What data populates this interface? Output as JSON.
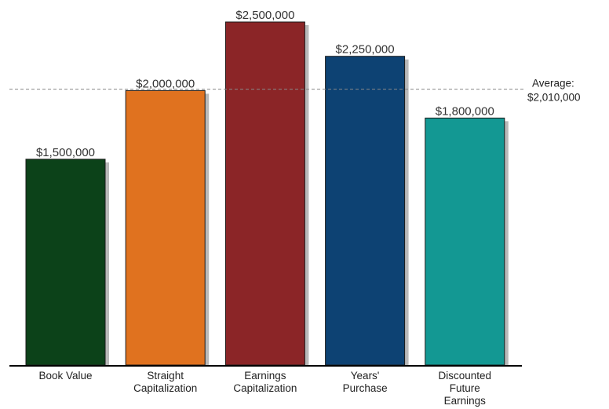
{
  "chart_data": {
    "type": "bar",
    "categories": [
      [
        "Book Value"
      ],
      [
        "Straight",
        "Capitalization"
      ],
      [
        "Earnings",
        "Capitalization"
      ],
      [
        "Years'",
        "Purchase"
      ],
      [
        "Discounted",
        "Future",
        "Earnings"
      ]
    ],
    "values": [
      1500000,
      2000000,
      2500000,
      2250000,
      1800000
    ],
    "value_labels": [
      "$1,500,000",
      "$2,000,000",
      "$2,500,000",
      "$2,250,000",
      "$1,800,000"
    ],
    "colors": [
      "#0c4219",
      "#e0721f",
      "#8b2527",
      "#0d4273",
      "#139893"
    ],
    "average": {
      "value": 2010000,
      "label_line1": "Average:",
      "label_line2": "$2,010,000"
    },
    "ylim": [
      0,
      2500000
    ],
    "grid": false,
    "legend": "none",
    "title": "",
    "xlabel": "",
    "ylabel": ""
  }
}
